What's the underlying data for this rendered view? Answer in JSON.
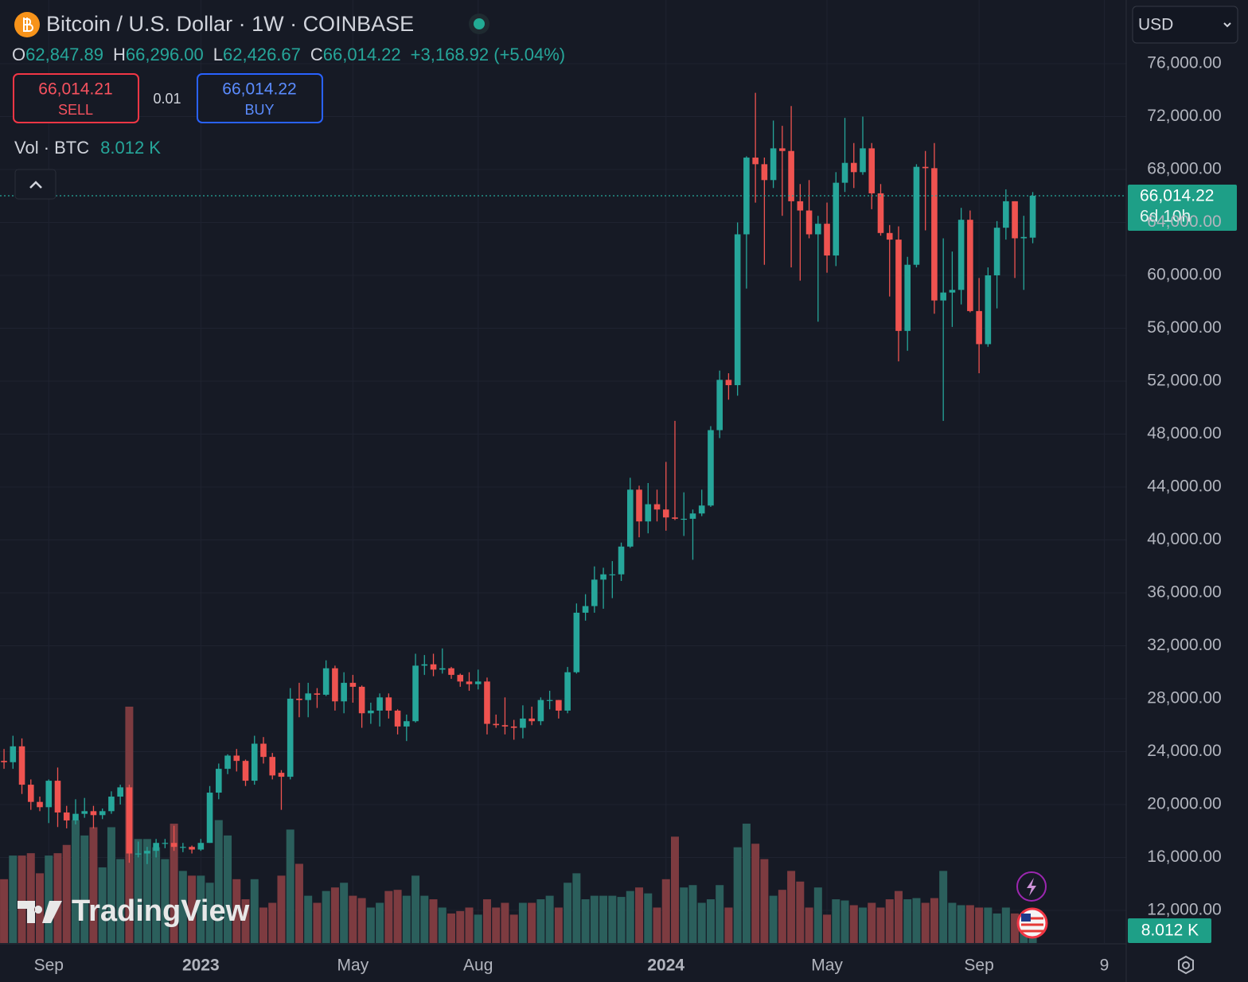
{
  "chart_data": {
    "type": "candlestick",
    "title": "Bitcoin / U.S. Dollar · 1W · COINBASE",
    "header": {
      "ohlc": [
        {
          "key": "O",
          "value": "62,847.89"
        },
        {
          "key": "H",
          "value": "66,296.00"
        },
        {
          "key": "L",
          "value": "62,426.67"
        },
        {
          "key": "C",
          "value": "66,014.22"
        }
      ],
      "change": "+3,168.92 (+5.04%)",
      "sell_price": "66,014.21",
      "sell": "SELL",
      "spread": "0.01",
      "buy_price": "66,014.22",
      "buy": "BUY",
      "currency": "USD",
      "volume_label": "Vol · BTC"
    },
    "last_price_label": "66,014.22",
    "countdown": "6d 10h",
    "volume_last_label": "8.012 K",
    "watermark": "TradingView",
    "up_color": "#26a69a",
    "down_color": "#ef5350",
    "volume_up_color": "#2b5f5c",
    "volume_down_color": "#7d3b40",
    "grid": true,
    "open": [
      23300,
      23200,
      24400,
      21500,
      20200,
      19800,
      21800,
      19400,
      18800,
      19300,
      19500,
      19200,
      19500,
      20600,
      21300,
      16300,
      16300,
      16500,
      17100,
      17100,
      16800,
      16800,
      16600,
      17100,
      20900,
      22700,
      23700,
      23300,
      21800,
      24600,
      23600,
      22400,
      22100,
      28000,
      27900,
      28400,
      28300,
      30300,
      27800,
      29200,
      28900,
      26900,
      27100,
      28100,
      27100,
      25900,
      26300,
      30500,
      30600,
      30200,
      30300,
      29800,
      29300,
      29100,
      29300,
      26100,
      26000,
      25900,
      25800,
      26500,
      26300,
      27900,
      27900,
      27100,
      30000,
      34500,
      35000,
      37000,
      37400,
      37400,
      39500,
      43800,
      41400,
      42700,
      42300,
      41700,
      41600,
      41600,
      42000,
      42600,
      48300,
      52100,
      51700,
      63100,
      68900,
      68400,
      67200,
      69600,
      69400,
      65600,
      64900,
      63100,
      63900,
      61500,
      67000,
      68500,
      67800,
      69600,
      66200,
      63200,
      62700,
      55800,
      60800,
      68200,
      68100,
      58100,
      58700,
      58900,
      64200,
      57300,
      54800,
      60000,
      63600,
      65600,
      62800,
      62847.89
    ],
    "high": [
      24200,
      25200,
      25000,
      21900,
      20600,
      21900,
      22800,
      19900,
      20400,
      20500,
      19900,
      19700,
      21000,
      21500,
      21500,
      17200,
      16800,
      17400,
      17400,
      18400,
      17100,
      16900,
      17400,
      21400,
      23100,
      23800,
      24200,
      23400,
      25200,
      25100,
      23900,
      22600,
      28800,
      29200,
      29200,
      28800,
      30900,
      30500,
      30000,
      29800,
      29000,
      27700,
      28400,
      28400,
      27200,
      26800,
      31400,
      31300,
      31400,
      31800,
      30400,
      29900,
      30000,
      30200,
      29600,
      26800,
      28100,
      26400,
      27500,
      27400,
      28100,
      28600,
      27900,
      30400,
      35200,
      35900,
      38000,
      37900,
      38400,
      39800,
      44700,
      44100,
      44300,
      43800,
      45900,
      49000,
      43600,
      42300,
      43800,
      48600,
      52800,
      52600,
      64000,
      69000,
      73800,
      68900,
      71700,
      71300,
      72800,
      66900,
      67200,
      64500,
      65500,
      67800,
      71900,
      70000,
      72000,
      70000,
      66900,
      63800,
      63700,
      61400,
      68400,
      69400,
      70000,
      62800,
      61800,
      65100,
      64900,
      59800,
      60600,
      64100,
      66500,
      65600,
      64500,
      66296
    ],
    "low": [
      22700,
      22700,
      20800,
      19600,
      19500,
      18600,
      18300,
      18200,
      18500,
      19000,
      18200,
      18900,
      19300,
      20000,
      15600,
      16000,
      15500,
      16000,
      16700,
      16500,
      16400,
      16300,
      16500,
      17100,
      20400,
      22300,
      22500,
      21400,
      21500,
      23100,
      21900,
      19600,
      21900,
      26600,
      26600,
      27300,
      28200,
      27100,
      26900,
      27700,
      25800,
      26100,
      25900,
      26500,
      25300,
      24800,
      26200,
      29800,
      29700,
      29900,
      29500,
      28900,
      28600,
      28700,
      25300,
      25800,
      25300,
      24900,
      25000,
      26000,
      26000,
      27200,
      26500,
      26900,
      29900,
      33900,
      34500,
      34800,
      35600,
      36900,
      39400,
      40200,
      40500,
      41400,
      40700,
      41500,
      40300,
      38500,
      41800,
      42500,
      47700,
      50600,
      50900,
      59000,
      65500,
      60800,
      66600,
      64500,
      60600,
      59600,
      62800,
      56500,
      60200,
      60700,
      66300,
      66600,
      67600,
      65000,
      63000,
      58400,
      53500,
      54300,
      60600,
      63400,
      57100,
      49000,
      56100,
      57800,
      57200,
      52600,
      54600,
      57500,
      62700,
      59800,
      58900,
      62426.67
    ],
    "close": [
      23200,
      24400,
      21500,
      20200,
      19800,
      21800,
      19400,
      18800,
      19300,
      19500,
      19200,
      19500,
      20600,
      21300,
      16300,
      16300,
      16500,
      17100,
      17100,
      16800,
      16800,
      16600,
      17100,
      20900,
      22700,
      23700,
      23300,
      21800,
      24600,
      23600,
      22200,
      22100,
      28000,
      27900,
      28400,
      28300,
      30300,
      27800,
      29200,
      28900,
      26900,
      27100,
      28100,
      27100,
      25900,
      26300,
      30500,
      30600,
      30200,
      30300,
      29800,
      29300,
      29100,
      29300,
      26100,
      26000,
      25900,
      25800,
      26500,
      26300,
      27900,
      27900,
      27100,
      30000,
      34500,
      35000,
      37000,
      37400,
      37400,
      39500,
      43800,
      41400,
      42700,
      42300,
      41700,
      41600,
      41600,
      42000,
      42600,
      48300,
      52100,
      51700,
      63100,
      68900,
      68400,
      67200,
      69600,
      69400,
      65600,
      64900,
      63100,
      63900,
      61500,
      67000,
      68500,
      67800,
      69600,
      66200,
      63200,
      62700,
      55800,
      60800,
      68200,
      68100,
      58100,
      58700,
      58900,
      64200,
      57300,
      54800,
      60000,
      63600,
      65600,
      62800,
      62900,
      66014.22
    ],
    "volume": [
      54,
      74,
      74,
      76,
      59,
      74,
      76,
      83,
      104,
      91,
      98,
      64,
      98,
      71,
      200,
      88,
      88,
      81,
      71,
      101,
      61,
      57,
      57,
      51,
      104,
      91,
      54,
      37,
      54,
      30,
      34,
      57,
      96,
      67,
      40,
      34,
      44,
      47,
      51,
      40,
      38,
      30,
      34,
      44,
      45,
      40,
      57,
      40,
      37,
      30,
      25,
      27,
      30,
      24,
      37,
      30,
      34,
      24,
      34,
      34,
      37,
      40,
      30,
      51,
      59,
      37,
      40,
      40,
      40,
      39,
      44,
      47,
      42,
      30,
      54,
      90,
      47,
      49,
      34,
      37,
      49,
      30,
      81,
      101,
      84,
      71,
      40,
      45,
      61,
      52,
      30,
      47,
      24,
      37,
      36,
      32,
      30,
      34,
      30,
      37,
      44,
      37,
      38,
      34,
      38,
      61,
      34,
      32,
      32,
      30,
      30,
      25,
      30,
      25,
      24,
      8.012
    ],
    "xlim": [
      -0.45,
      125.45
    ],
    "xticks": [
      {
        "value": 5,
        "label": "Sep"
      },
      {
        "value": 22,
        "label": "2023"
      },
      {
        "value": 39,
        "label": "May"
      },
      {
        "value": 53,
        "label": "Aug"
      },
      {
        "value": 74,
        "label": "2024"
      },
      {
        "value": 92,
        "label": "May"
      },
      {
        "value": 109,
        "label": "Sep"
      },
      {
        "value": 123,
        "label": "9"
      }
    ],
    "ylim": [
      9534,
      80812
    ],
    "yticks": [
      {
        "value": 12000,
        "label": "12,000.00"
      },
      {
        "value": 16000,
        "label": "16,000.00"
      },
      {
        "value": 20000,
        "label": "20,000.00"
      },
      {
        "value": 24000,
        "label": "24,000.00"
      },
      {
        "value": 28000,
        "label": "28,000.00"
      },
      {
        "value": 32000,
        "label": "32,000.00"
      },
      {
        "value": 36000,
        "label": "36,000.00"
      },
      {
        "value": 40000,
        "label": "40,000.00"
      },
      {
        "value": 44000,
        "label": "44,000.00"
      },
      {
        "value": 48000,
        "label": "48,000.00"
      },
      {
        "value": 52000,
        "label": "52,000.00"
      },
      {
        "value": 56000,
        "label": "56,000.00"
      },
      {
        "value": 60000,
        "label": "60,000.00"
      },
      {
        "value": 64000,
        "label": "64,000.00"
      },
      {
        "value": 68000,
        "label": "68,000.00"
      },
      {
        "value": 72000,
        "label": "72,000.00"
      },
      {
        "value": 76000,
        "label": "76,000.00"
      }
    ]
  }
}
